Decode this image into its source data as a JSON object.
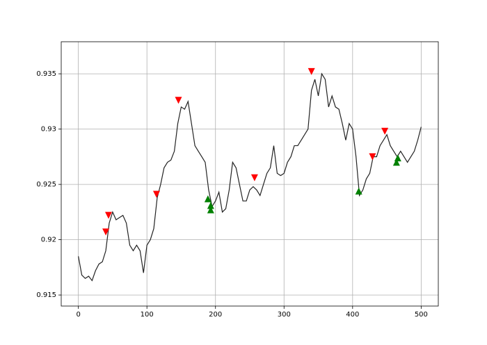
{
  "chart_data": {
    "type": "line",
    "xlim": [
      -25,
      525
    ],
    "xticks": [
      0,
      100,
      200,
      300,
      400,
      500
    ],
    "ylim": [
      0.914,
      0.9379
    ],
    "yticks": [
      0.915,
      0.92,
      0.925,
      0.93,
      0.935
    ],
    "grid": true,
    "series": [
      {
        "color": "#222222",
        "marker": "line",
        "x": [
          0,
          5,
          10,
          15,
          20,
          25,
          30,
          35,
          40,
          45,
          50,
          55,
          60,
          65,
          70,
          75,
          80,
          85,
          90,
          95,
          100,
          105,
          110,
          115,
          120,
          125,
          130,
          135,
          140,
          145,
          150,
          155,
          160,
          165,
          170,
          175,
          180,
          185,
          190,
          195,
          200,
          205,
          210,
          215,
          220,
          225,
          230,
          235,
          240,
          245,
          250,
          255,
          260,
          265,
          270,
          275,
          280,
          285,
          290,
          295,
          300,
          305,
          310,
          315,
          320,
          325,
          330,
          335,
          340,
          345,
          350,
          355,
          360,
          365,
          370,
          375,
          380,
          385,
          390,
          395,
          400,
          405,
          410,
          415,
          420,
          425,
          430,
          435,
          440,
          445,
          450,
          455,
          460,
          465,
          470,
          475,
          480,
          485,
          490,
          495,
          500
        ],
        "values": [
          0.9185,
          0.9168,
          0.9165,
          0.9167,
          0.9163,
          0.9172,
          0.9178,
          0.918,
          0.919,
          0.9215,
          0.9225,
          0.9218,
          0.922,
          0.9222,
          0.9215,
          0.9195,
          0.919,
          0.9195,
          0.919,
          0.917,
          0.9195,
          0.92,
          0.921,
          0.9238,
          0.925,
          0.9265,
          0.927,
          0.9272,
          0.928,
          0.9305,
          0.932,
          0.9318,
          0.9325,
          0.9305,
          0.9285,
          0.928,
          0.9275,
          0.927,
          0.9245,
          0.923,
          0.9235,
          0.9243,
          0.9225,
          0.9228,
          0.9245,
          0.927,
          0.9265,
          0.925,
          0.9235,
          0.9235,
          0.9245,
          0.9248,
          0.9245,
          0.924,
          0.925,
          0.926,
          0.9265,
          0.9285,
          0.926,
          0.9258,
          0.926,
          0.927,
          0.9275,
          0.9285,
          0.9285,
          0.929,
          0.9295,
          0.93,
          0.9335,
          0.9345,
          0.933,
          0.935,
          0.9345,
          0.932,
          0.933,
          0.932,
          0.9318,
          0.9305,
          0.929,
          0.9305,
          0.93,
          0.9275,
          0.924,
          0.9245,
          0.9255,
          0.926,
          0.9275,
          0.9275,
          0.9285,
          0.929,
          0.9295,
          0.9285,
          0.928,
          0.9275,
          0.928,
          0.9275,
          0.927,
          0.9275,
          0.928,
          0.929,
          0.9302
        ]
      },
      {
        "color": "#ff0000",
        "marker": "v",
        "x": [
          40,
          44,
          114,
          146,
          257,
          340,
          429,
          447
        ],
        "values": [
          0.9207,
          0.9222,
          0.9241,
          0.9326,
          0.9256,
          0.9352,
          0.9275,
          0.9298
        ]
      },
      {
        "color": "#008000",
        "marker": "^",
        "x": [
          189,
          193,
          193,
          409,
          464,
          466
        ],
        "values": [
          0.9237,
          0.9231,
          0.9227,
          0.9244,
          0.927,
          0.9274
        ]
      }
    ]
  }
}
